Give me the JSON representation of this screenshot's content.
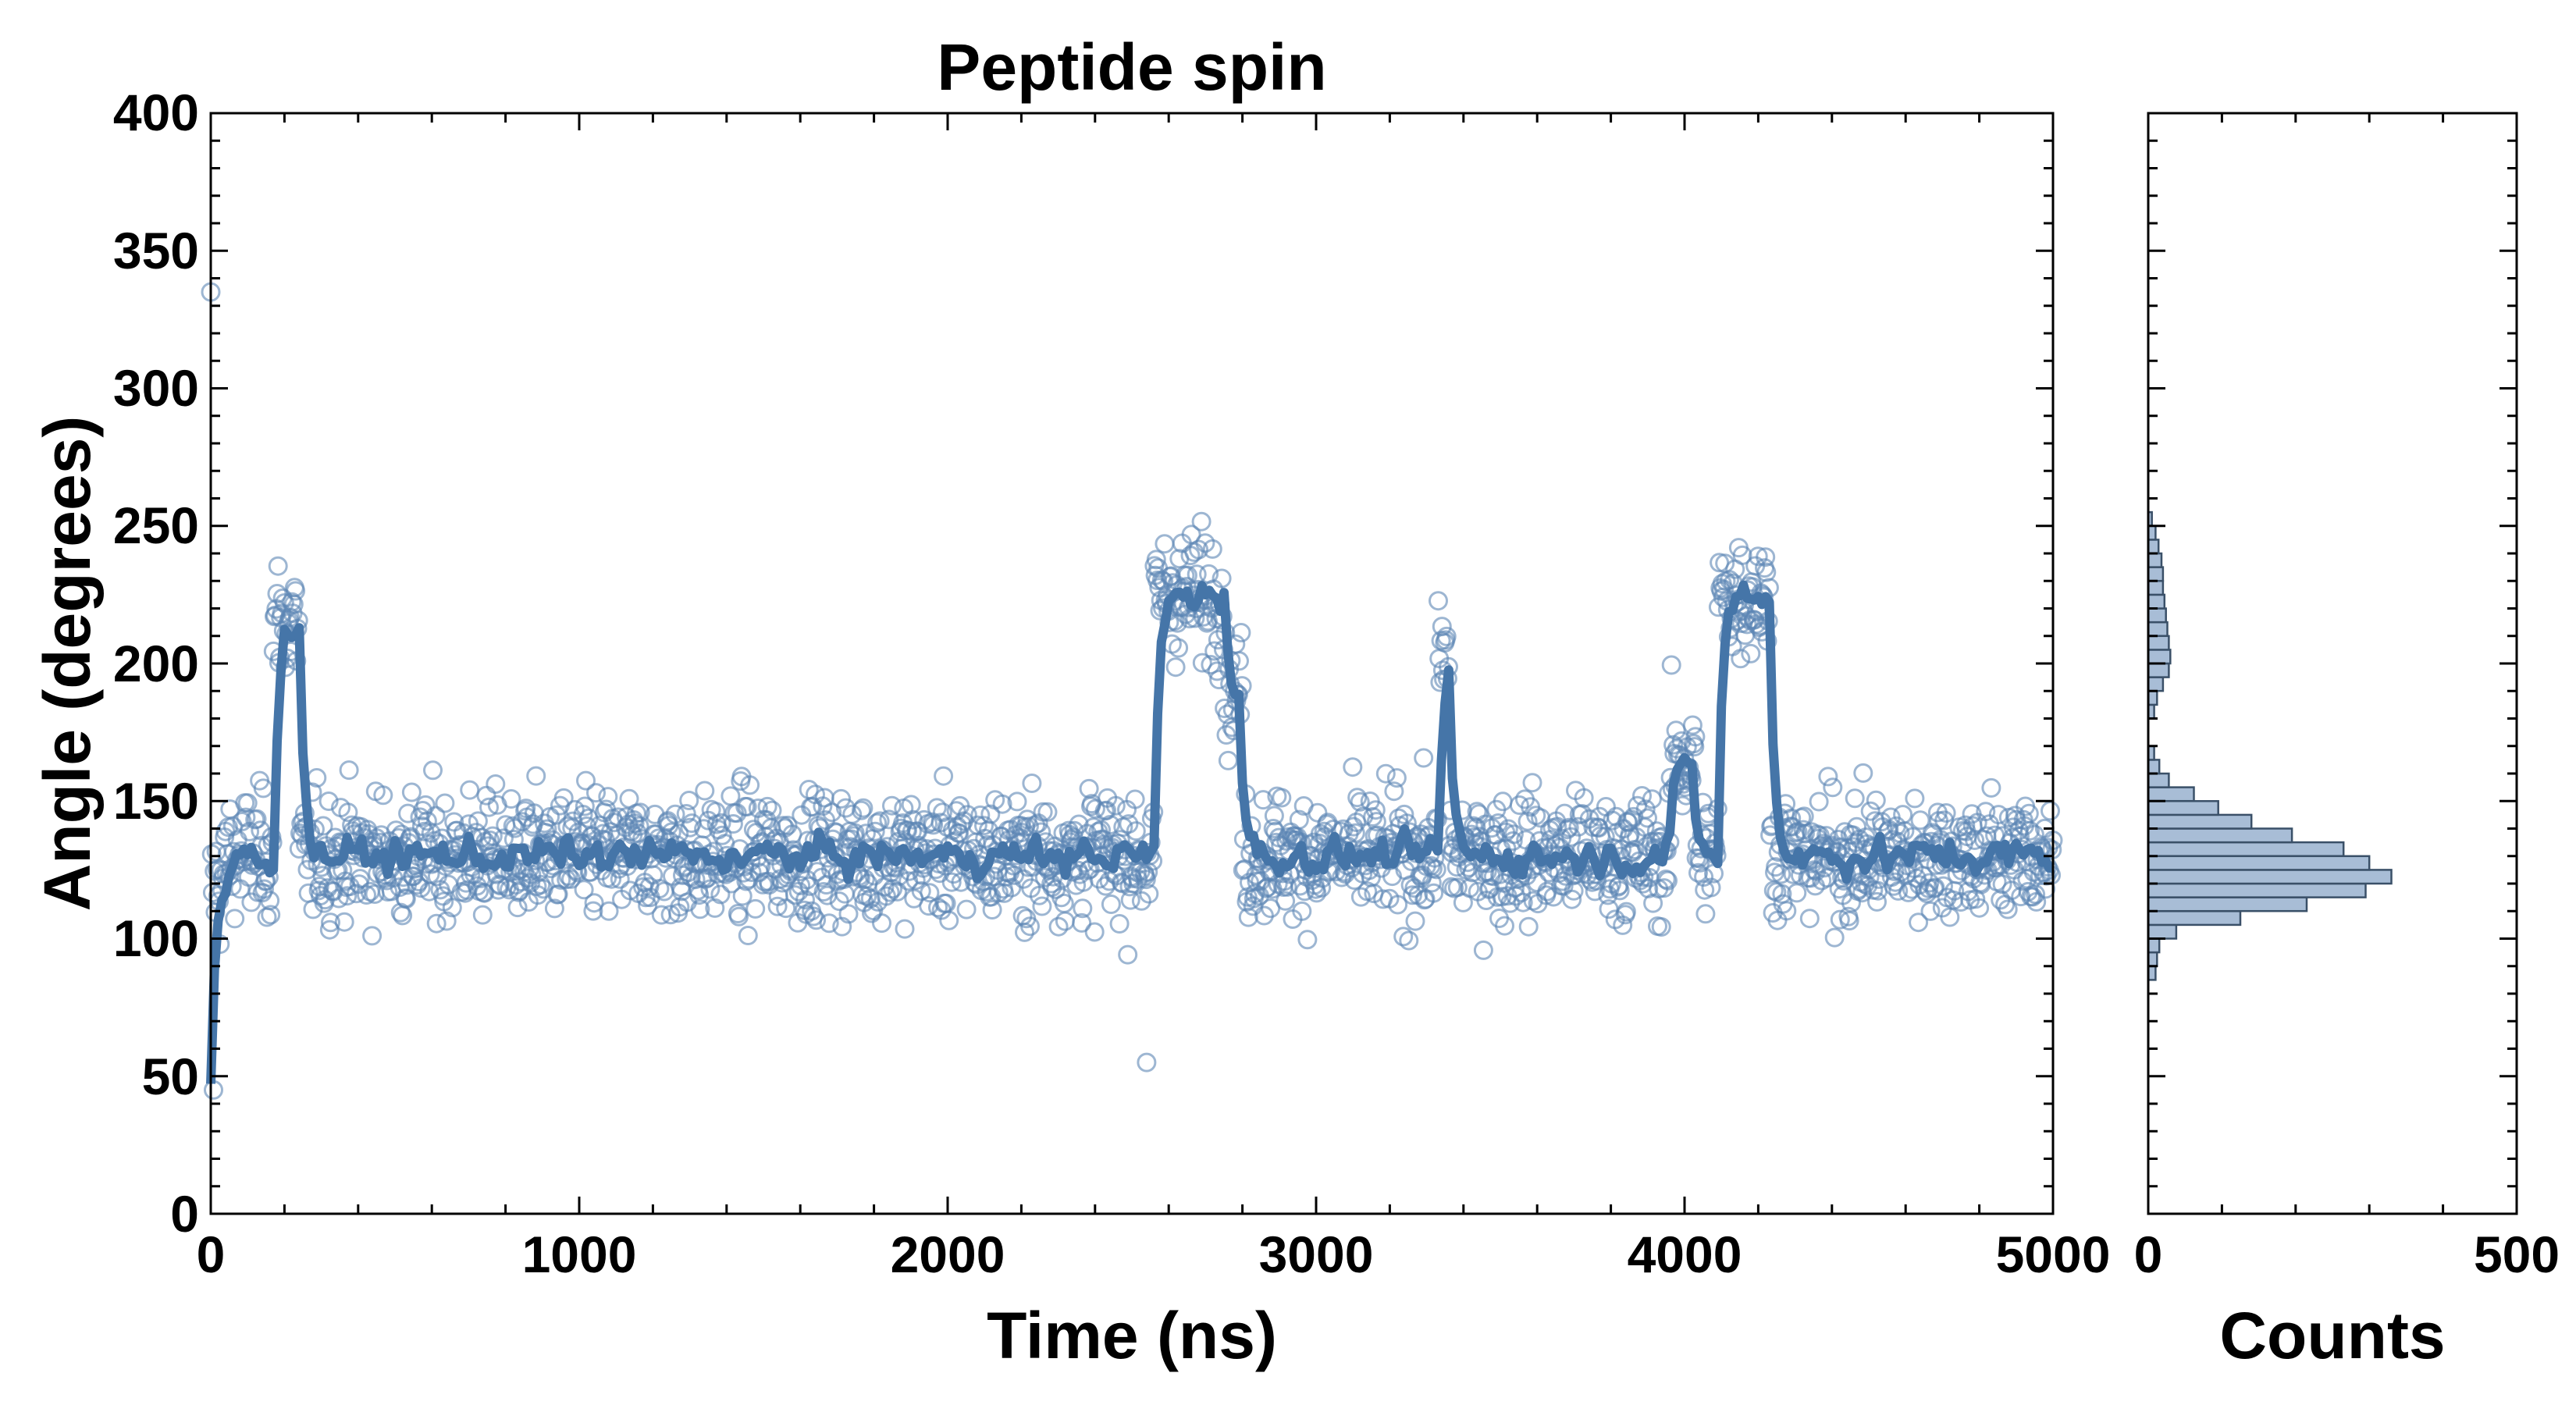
{
  "chart_data": [
    {
      "type": "scatter",
      "title": "Peptide spin",
      "xlabel": "Time (ns)",
      "ylabel": "Angle (degrees)",
      "xlim": [
        0,
        5000
      ],
      "ylim": [
        0,
        400
      ],
      "xticks": [
        "0",
        "1000",
        "2000",
        "3000",
        "4000",
        "5000"
      ],
      "yticks": [
        "0",
        "50",
        "100",
        "150",
        "200",
        "250",
        "300",
        "350",
        "400"
      ],
      "grid": false,
      "colors": {
        "points": "#5b86b4",
        "line": "#4575a8",
        "hist_fill": "#a8bdd6",
        "hist_edge": "#3a5068"
      },
      "description_of_series": [
        {
          "name": "",
          "kind": "scatter",
          "x_range": [
            0,
            5000
          ],
          "n_points": 2000
        },
        {
          "name": "",
          "kind": "line"
        }
      ],
      "levels": [
        {
          "x": [
            0,
            40
          ],
          "y": 120
        },
        {
          "x": [
            40,
            170
          ],
          "y": 130
        },
        {
          "x": [
            170,
            240
          ],
          "y": 215
        },
        {
          "x": [
            240,
            2560
          ],
          "y": 130
        },
        {
          "x": [
            2560,
            2750
          ],
          "y": 225
        },
        {
          "x": [
            2750,
            2800
          ],
          "y": 190
        },
        {
          "x": [
            2800,
            3330
          ],
          "y": 130
        },
        {
          "x": [
            3330,
            3360
          ],
          "y": 200
        },
        {
          "x": [
            3360,
            3960
          ],
          "y": 130
        },
        {
          "x": [
            3960,
            4030
          ],
          "y": 165
        },
        {
          "x": [
            4030,
            4090
          ],
          "y": 130
        },
        {
          "x": [
            4090,
            4230
          ],
          "y": 225
        },
        {
          "x": [
            4230,
            5000
          ],
          "y": 130
        }
      ]
    },
    {
      "type": "bar",
      "orientation": "horizontal",
      "xlabel": "Counts",
      "xlim": [
        0,
        500
      ],
      "xticks": [
        "0",
        "500"
      ],
      "ylim": [
        0,
        400
      ],
      "bin_width": 5,
      "bins": [
        {
          "y0": 85,
          "y1": 90,
          "count": 10
        },
        {
          "y0": 90,
          "y1": 95,
          "count": 12
        },
        {
          "y0": 95,
          "y1": 100,
          "count": 15
        },
        {
          "y0": 100,
          "y1": 105,
          "count": 38
        },
        {
          "y0": 105,
          "y1": 110,
          "count": 125
        },
        {
          "y0": 110,
          "y1": 115,
          "count": 215
        },
        {
          "y0": 115,
          "y1": 120,
          "count": 295
        },
        {
          "y0": 120,
          "y1": 125,
          "count": 330
        },
        {
          "y0": 125,
          "y1": 130,
          "count": 300
        },
        {
          "y0": 130,
          "y1": 135,
          "count": 265
        },
        {
          "y0": 135,
          "y1": 140,
          "count": 195
        },
        {
          "y0": 140,
          "y1": 145,
          "count": 140
        },
        {
          "y0": 145,
          "y1": 150,
          "count": 95
        },
        {
          "y0": 150,
          "y1": 155,
          "count": 62
        },
        {
          "y0": 155,
          "y1": 160,
          "count": 28
        },
        {
          "y0": 160,
          "y1": 165,
          "count": 15
        },
        {
          "y0": 165,
          "y1": 170,
          "count": 8
        },
        {
          "y0": 180,
          "y1": 185,
          "count": 8
        },
        {
          "y0": 185,
          "y1": 190,
          "count": 12
        },
        {
          "y0": 190,
          "y1": 195,
          "count": 20
        },
        {
          "y0": 195,
          "y1": 200,
          "count": 28
        },
        {
          "y0": 200,
          "y1": 205,
          "count": 30
        },
        {
          "y0": 205,
          "y1": 210,
          "count": 28
        },
        {
          "y0": 210,
          "y1": 215,
          "count": 26
        },
        {
          "y0": 215,
          "y1": 220,
          "count": 24
        },
        {
          "y0": 220,
          "y1": 225,
          "count": 22
        },
        {
          "y0": 225,
          "y1": 230,
          "count": 20
        },
        {
          "y0": 230,
          "y1": 235,
          "count": 20
        },
        {
          "y0": 235,
          "y1": 240,
          "count": 18
        },
        {
          "y0": 240,
          "y1": 245,
          "count": 14
        },
        {
          "y0": 245,
          "y1": 250,
          "count": 10
        },
        {
          "y0": 250,
          "y1": 255,
          "count": 5
        }
      ]
    }
  ]
}
